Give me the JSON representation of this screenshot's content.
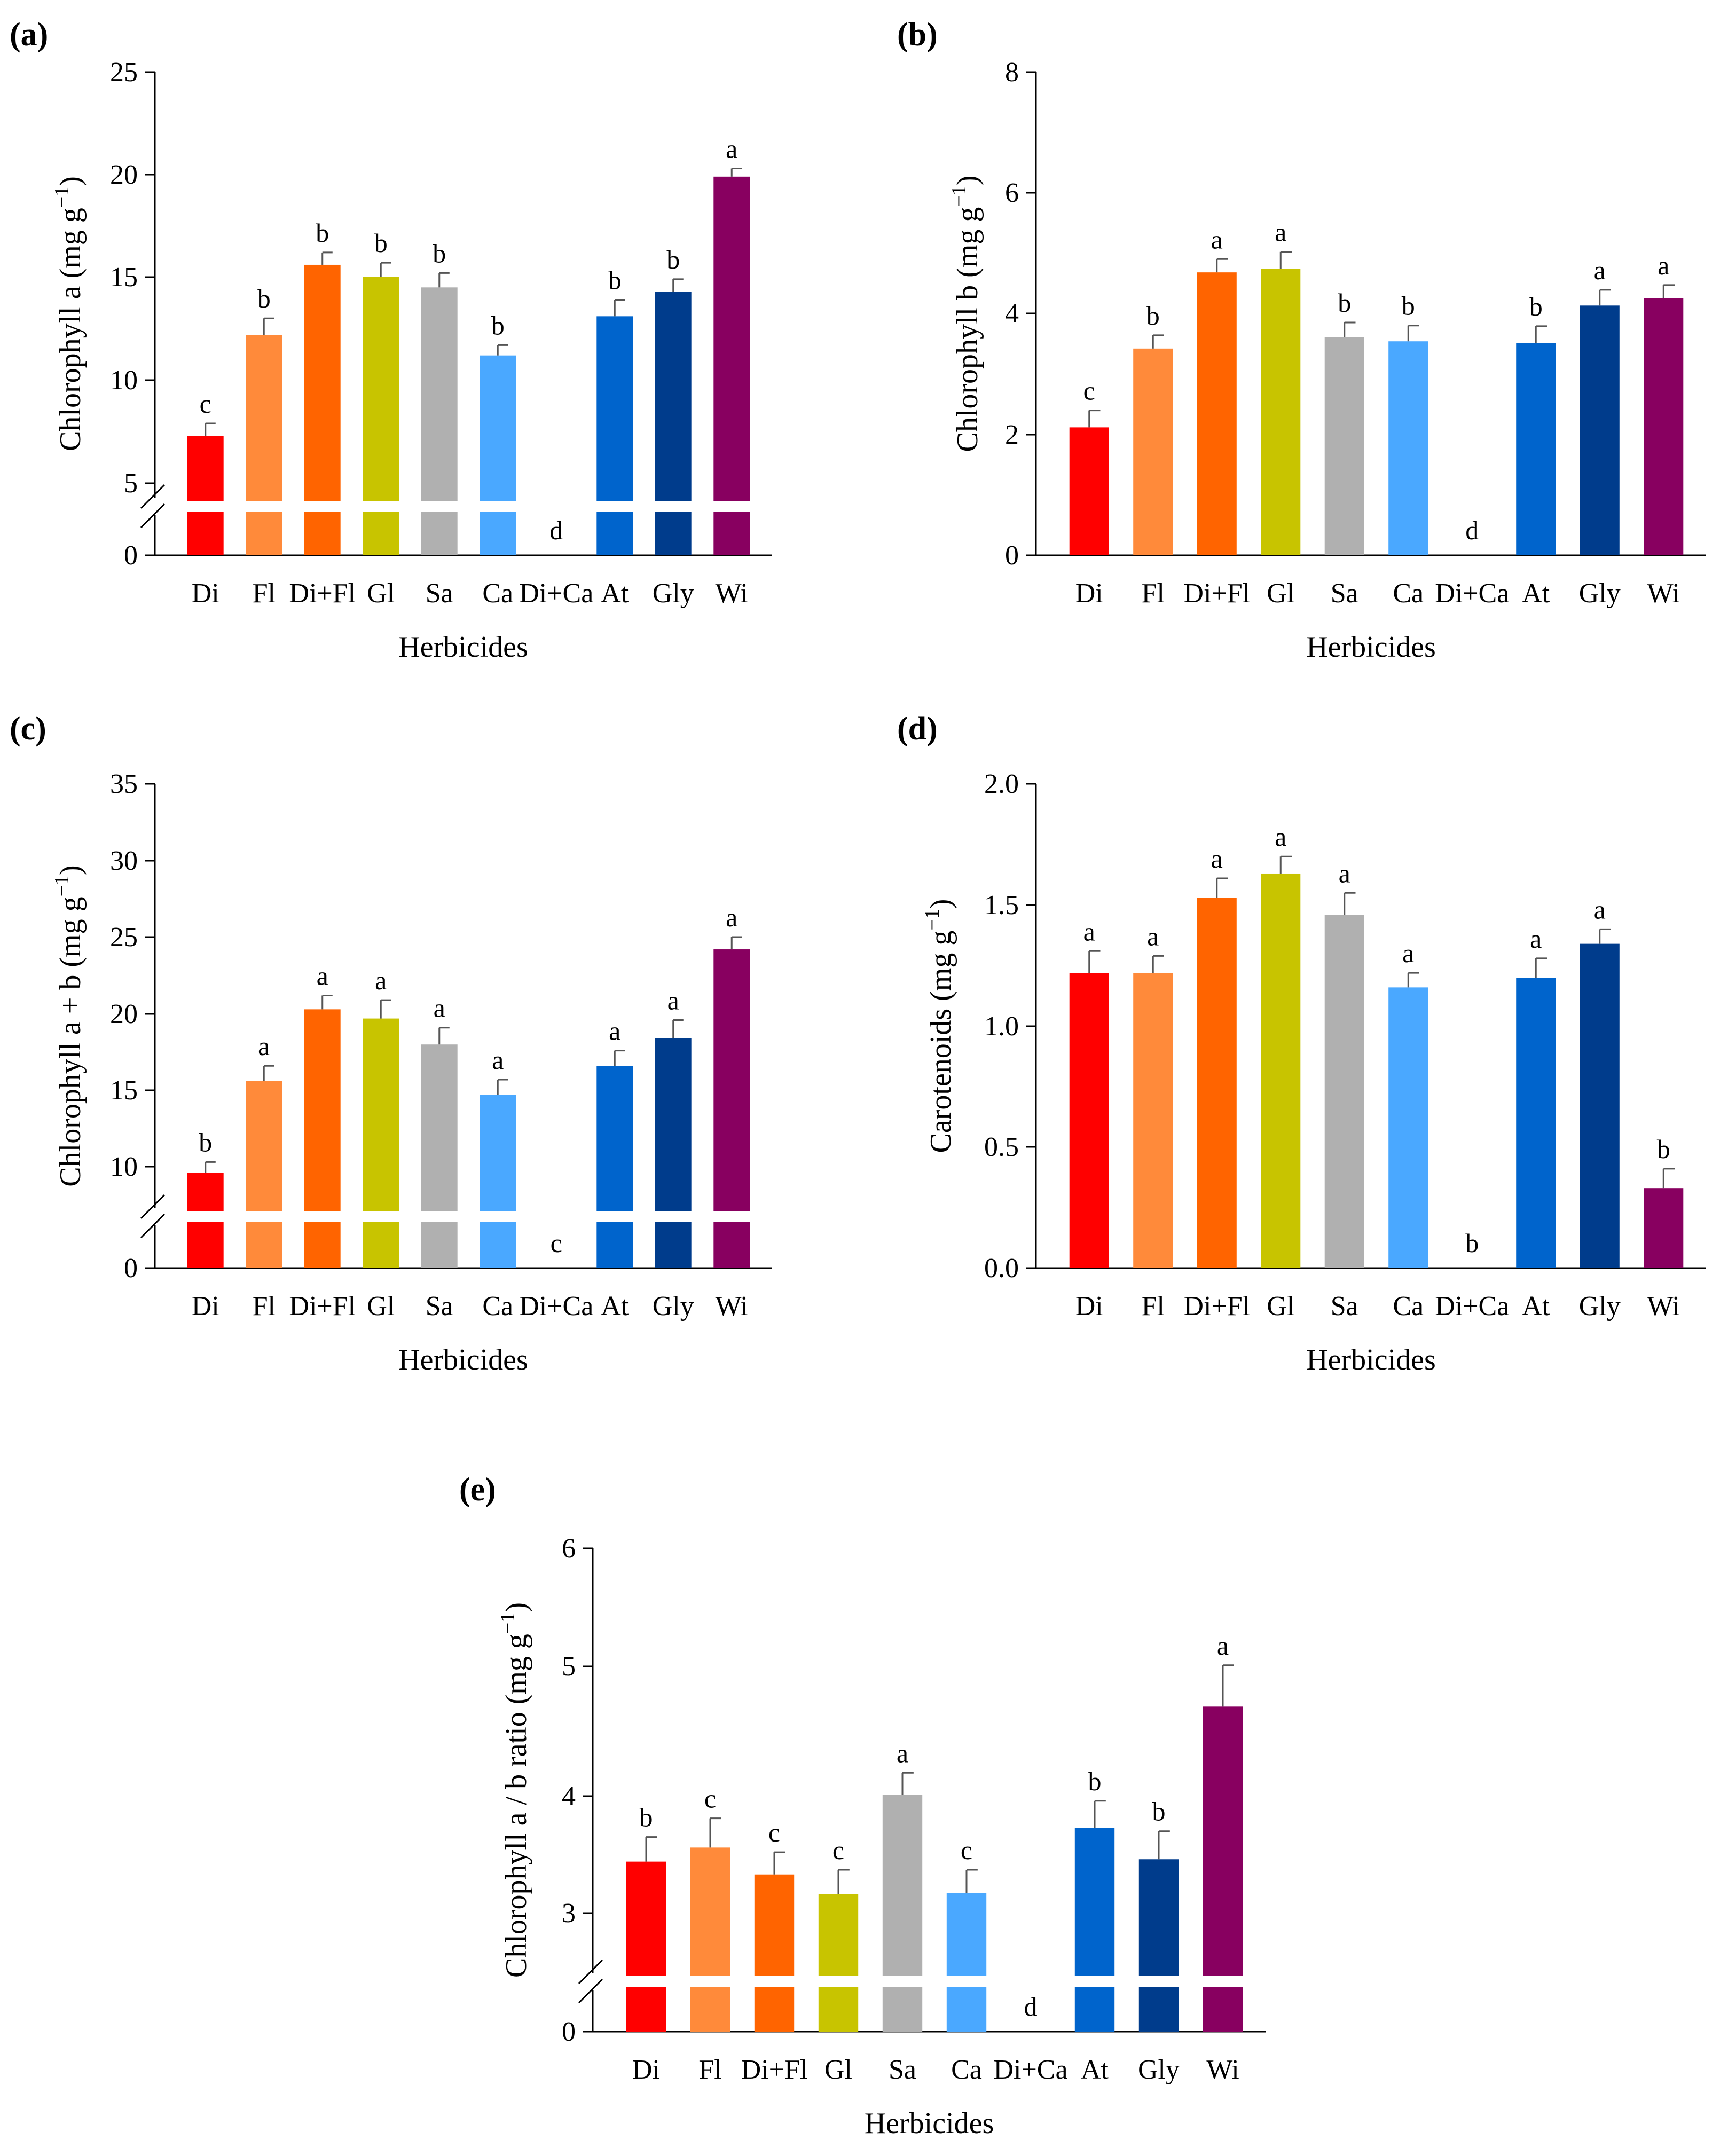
{
  "chart_data": [
    {
      "id": "a",
      "panel_label": "(a)",
      "type": "bar",
      "ylabel": "Chlorophyll a (mg g",
      "ylabel_sup": "−1",
      "ylabel_end": ")",
      "xlabel": "Herbicides",
      "categories": [
        "Di",
        "Fl",
        "Di+Fl",
        "Gl",
        "Sa",
        "Ca",
        "Di+Ca",
        "At",
        "Gly",
        "Wi"
      ],
      "values": [
        7.3,
        12.2,
        15.6,
        15.0,
        14.5,
        11.2,
        0,
        13.1,
        14.3,
        19.9
      ],
      "errors": [
        0.6,
        0.8,
        0.6,
        0.7,
        0.7,
        0.5,
        0,
        0.8,
        0.6,
        0.4
      ],
      "letters": [
        "c",
        "b",
        "b",
        "b",
        "b",
        "b",
        "d",
        "b",
        "b",
        "a"
      ],
      "yticks": [
        "0",
        "5",
        "10",
        "15",
        "20",
        "25"
      ],
      "axis_break": true,
      "ylim": [
        0,
        25
      ]
    },
    {
      "id": "b",
      "panel_label": "(b)",
      "type": "bar",
      "ylabel": "Chlorophyll b (mg g",
      "ylabel_sup": "−1",
      "ylabel_end": ")",
      "xlabel": "Herbicides",
      "categories": [
        "Di",
        "Fl",
        "Di+Fl",
        "Gl",
        "Sa",
        "Ca",
        "Di+Ca",
        "At",
        "Gly",
        "Wi"
      ],
      "values": [
        2.12,
        3.42,
        4.68,
        4.74,
        3.61,
        3.54,
        0,
        3.51,
        4.13,
        4.25
      ],
      "errors": [
        0.28,
        0.22,
        0.22,
        0.28,
        0.24,
        0.26,
        0,
        0.28,
        0.26,
        0.22
      ],
      "letters": [
        "c",
        "b",
        "a",
        "a",
        "b",
        "b",
        "d",
        "b",
        "a",
        "a"
      ],
      "yticks": [
        "0",
        "2",
        "4",
        "6",
        "8"
      ],
      "axis_break": false,
      "ylim": [
        0,
        8
      ]
    },
    {
      "id": "c",
      "panel_label": "(c)",
      "type": "bar",
      "ylabel": "Chlorophyll a + b (mg g",
      "ylabel_sup": "−1",
      "ylabel_end": ")",
      "xlabel": "Herbicides",
      "categories": [
        "Di",
        "Fl",
        "Di+Fl",
        "Gl",
        "Sa",
        "Ca",
        "Di+Ca",
        "At",
        "Gly",
        "Wi"
      ],
      "values": [
        9.4,
        15.6,
        20.3,
        19.7,
        18.0,
        14.7,
        0,
        16.6,
        18.4,
        24.2
      ],
      "errors": [
        0.9,
        1.0,
        0.9,
        1.2,
        1.1,
        1.0,
        0,
        1.0,
        1.2,
        0.8
      ],
      "letters": [
        "b",
        "a",
        "a",
        "a",
        "a",
        "a",
        "c",
        "a",
        "a",
        "a"
      ],
      "yticks": [
        "0",
        "10",
        "15",
        "20",
        "25",
        "30",
        "35"
      ],
      "axis_break": true,
      "ylim": [
        0,
        35
      ]
    },
    {
      "id": "d",
      "panel_label": "(d)",
      "type": "bar",
      "ylabel": "Carotenoids (mg g",
      "ylabel_sup": "−1",
      "ylabel_end": ")",
      "xlabel": "Herbicides",
      "categories": [
        "Di",
        "Fl",
        "Di+Fl",
        "Gl",
        "Sa",
        "Ca",
        "Di+Ca",
        "At",
        "Gly",
        "Wi"
      ],
      "values": [
        1.22,
        1.22,
        1.53,
        1.63,
        1.46,
        1.16,
        0,
        1.2,
        1.34,
        0.33
      ],
      "errors": [
        0.09,
        0.07,
        0.08,
        0.07,
        0.09,
        0.06,
        0,
        0.08,
        0.06,
        0.08
      ],
      "letters": [
        "a",
        "a",
        "a",
        "a",
        "a",
        "a",
        "b",
        "a",
        "a",
        "b"
      ],
      "yticks": [
        "0.0",
        "0.5",
        "1.0",
        "1.5",
        "2.0"
      ],
      "axis_break": false,
      "ylim": [
        0,
        2
      ]
    },
    {
      "id": "e",
      "panel_label": "(e)",
      "type": "bar",
      "ylabel": "Chlorophyll a / b ratio (mg g",
      "ylabel_sup": "−1",
      "ylabel_end": ")",
      "xlabel": "Herbicides",
      "categories": [
        "Di",
        "Fl",
        "Di+Fl",
        "Gl",
        "Sa",
        "Ca",
        "Di+Ca",
        "At",
        "Gly",
        "Wi"
      ],
      "values": [
        3.44,
        3.56,
        3.33,
        3.16,
        4.01,
        3.17,
        0,
        3.73,
        3.46,
        4.69
      ],
      "errors": [
        0.21,
        0.25,
        0.19,
        0.21,
        0.17,
        0.2,
        0,
        0.23,
        0.24,
        0.32
      ],
      "letters": [
        "b",
        "c",
        "c",
        "c",
        "a",
        "c",
        "d",
        "b",
        "b",
        "a"
      ],
      "yticks": [
        "0",
        "3",
        "4",
        "5",
        "6"
      ],
      "axis_break": true,
      "ylim": [
        0,
        6
      ]
    }
  ],
  "colors": [
    "#ff0000",
    "#ff8a3a",
    "#ff6400",
    "#c8c400",
    "#b0b0b0",
    "#4aa8ff",
    "#c0c0c0",
    "#0064cc",
    "#003c8c",
    "#880060"
  ]
}
